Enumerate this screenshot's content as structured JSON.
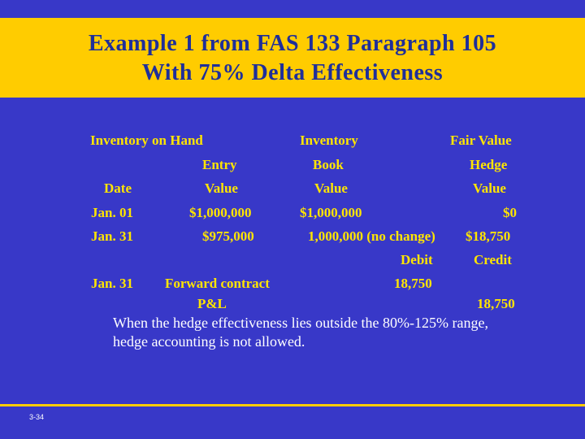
{
  "title": {
    "line1": "Example 1 from FAS 133 Paragraph 105",
    "line2": "With 75% Delta Effectiveness"
  },
  "headers": {
    "inventory_on_hand": "Inventory on Hand",
    "inventory": "Inventory",
    "fair_value": "Fair Value",
    "entry": "Entry",
    "book": "Book",
    "hedge": "Hedge",
    "date": "Date",
    "value_entry": "Value",
    "value_book": "Value",
    "value_hedge": "Value"
  },
  "rows": [
    {
      "date": "Jan. 01",
      "entry_value": "$1,000,000",
      "book_value": "$1,000,000",
      "hedge_value": "$0"
    },
    {
      "date": "Jan. 31",
      "entry_value": "$975,000",
      "book_value": "1,000,000 (no change)",
      "hedge_value": "$18,750"
    }
  ],
  "journal": {
    "debit_label": "Debit",
    "credit_label": "Credit",
    "date": "Jan. 31",
    "account1": "Forward contract",
    "debit_amount": "18,750",
    "account2": "P&L",
    "credit_amount": "18,750"
  },
  "note": {
    "line1": "When the hedge effectiveness lies outside the 80%-125% range,",
    "line2": "hedge accounting is not allowed."
  },
  "slide_number": "3-34",
  "colors": {
    "background": "#3838c8",
    "title_band": "#ffcc00",
    "title_text": "#1f2f9a",
    "body_text": "#ffe500"
  }
}
